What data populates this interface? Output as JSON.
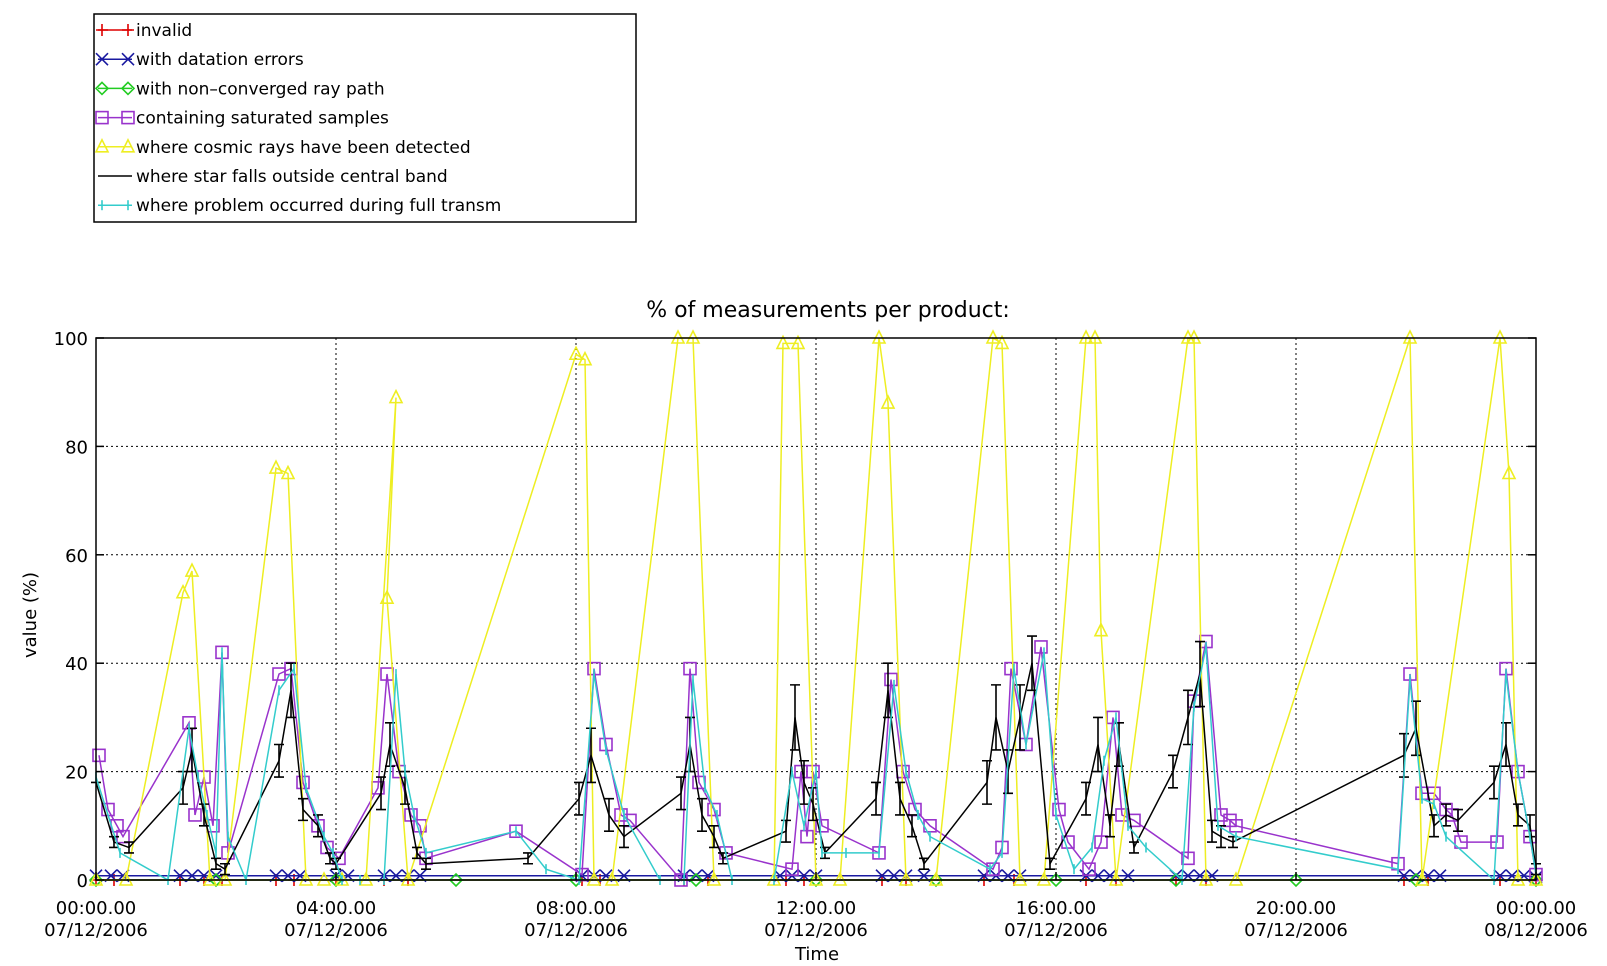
{
  "chart_data": {
    "type": "line",
    "title": "% of measurements per product:",
    "xlabel": "Time",
    "ylabel": "value (%)",
    "ylim": [
      0,
      100
    ],
    "xlim_hours": [
      0,
      24
    ],
    "grid": true,
    "legend_position": "top-left, above plot",
    "y_ticks": [
      "0",
      "20",
      "40",
      "60",
      "80",
      "100"
    ],
    "x_ticks": [
      {
        "hour": 0,
        "time": "00:00.00",
        "date": "07/12/2006"
      },
      {
        "hour": 4,
        "time": "04:00.00",
        "date": "07/12/2006"
      },
      {
        "hour": 8,
        "time": "08:00.00",
        "date": "07/12/2006"
      },
      {
        "hour": 12,
        "time": "12:00.00",
        "date": "07/12/2006"
      },
      {
        "hour": 16,
        "time": "16:00.00",
        "date": "07/12/2006"
      },
      {
        "hour": 20,
        "time": "20:00.00",
        "date": "07/12/2006"
      },
      {
        "hour": 24,
        "time": "00:00.00",
        "date": "08/12/2006"
      }
    ],
    "series": [
      {
        "name": "invalid",
        "color": "#dd0000",
        "marker": "plus",
        "x": [
          0,
          0.3,
          1.4,
          1.8,
          2.1,
          3.0,
          3.3,
          4.0,
          4.8,
          5.2,
          8.1,
          8.4,
          9.8,
          10.2,
          11.5,
          11.8,
          13.1,
          13.5,
          14.8,
          15.3,
          16.5,
          17.0,
          18.0,
          18.5,
          21.8,
          22.2,
          23.4,
          24
        ],
        "values": [
          0,
          0,
          0,
          0,
          0,
          0,
          0,
          0,
          0,
          0,
          0,
          0,
          0,
          0,
          0,
          0,
          0,
          0,
          0,
          0,
          0,
          0,
          0,
          0,
          0,
          0,
          0,
          0
        ]
      },
      {
        "name": "with datation errors",
        "color": "#1a1aa0",
        "marker": "x",
        "x": [
          0,
          0.25,
          0.45,
          1.4,
          1.6,
          1.8,
          2.0,
          3.0,
          3.2,
          3.4,
          4.0,
          4.2,
          4.8,
          5.0,
          5.2,
          5.4,
          8.1,
          8.3,
          8.5,
          8.8,
          9.8,
          10.0,
          10.2,
          11.4,
          11.6,
          11.8,
          12.0,
          13.1,
          13.3,
          13.5,
          13.8,
          14.8,
          15.0,
          15.2,
          15.4,
          16.5,
          16.7,
          16.9,
          17.2,
          18.0,
          18.2,
          18.4,
          18.6,
          21.8,
          22.0,
          22.2,
          22.4,
          23.4,
          23.6,
          23.8,
          24
        ],
        "values": [
          0.8,
          0.8,
          0.8,
          0.8,
          0.8,
          0.8,
          0.8,
          0.8,
          0.8,
          0.8,
          0.8,
          0.8,
          0.8,
          0.8,
          0.8,
          0.8,
          0.8,
          0.8,
          0.8,
          0.8,
          0.8,
          0.8,
          0.8,
          0.8,
          0.8,
          0.8,
          0.8,
          0.8,
          0.8,
          0.8,
          0.8,
          0.8,
          0.8,
          0.8,
          0.8,
          0.8,
          0.8,
          0.8,
          0.8,
          0.8,
          0.8,
          0.8,
          0.8,
          0.8,
          0.8,
          0.8,
          0.8,
          0.8,
          0.8,
          0.8,
          0.5
        ]
      },
      {
        "name": "with non–converged ray path",
        "color": "#22cc22",
        "marker": "diamond",
        "x": [
          0,
          2,
          4,
          6,
          8,
          10,
          12,
          14,
          16,
          18,
          20,
          22,
          24
        ],
        "values": [
          0,
          0,
          0,
          0,
          0,
          0,
          0,
          0,
          0,
          0,
          0,
          0,
          0
        ]
      },
      {
        "name": "containing saturated samples",
        "color": "#9933cc",
        "marker": "square",
        "x": [
          0.05,
          0.2,
          0.35,
          0.45,
          1.55,
          1.65,
          1.8,
          1.95,
          2.1,
          2.2,
          3.05,
          3.25,
          3.45,
          3.7,
          3.85,
          4.05,
          4.7,
          4.85,
          5.05,
          5.25,
          5.4,
          5.5,
          7.0,
          8.1,
          8.3,
          8.5,
          8.75,
          8.9,
          9.75,
          9.9,
          10.05,
          10.3,
          10.5,
          11.6,
          11.75,
          11.85,
          11.95,
          12.1,
          13.05,
          13.25,
          13.45,
          13.65,
          13.9,
          14.95,
          15.1,
          15.25,
          15.5,
          15.75,
          16.05,
          16.2,
          16.55,
          16.75,
          16.95,
          17.1,
          17.3,
          18.2,
          18.3,
          18.5,
          18.75,
          18.9,
          19.0,
          21.7,
          21.9,
          22.1,
          22.3,
          22.5,
          22.6,
          22.75,
          23.35,
          23.5,
          23.7,
          23.9,
          24.0
        ],
        "values": [
          23,
          13,
          10,
          8,
          29,
          12,
          19,
          10,
          42,
          5,
          38,
          39,
          18,
          10,
          6,
          4,
          17,
          38,
          20,
          12,
          10,
          4,
          9,
          1,
          39,
          25,
          12,
          11,
          0,
          39,
          18,
          13,
          5,
          2,
          20,
          8,
          20,
          10,
          5,
          37,
          20,
          13,
          10,
          2,
          6,
          39,
          25,
          43,
          13,
          7,
          2,
          7,
          30,
          12,
          11,
          4,
          33,
          44,
          12,
          11,
          10,
          3,
          38,
          16,
          16,
          13,
          12,
          7,
          7,
          39,
          20,
          8,
          1
        ]
      },
      {
        "name": "where cosmic rays have been detected",
        "color": "#eeee22",
        "marker": "triangle",
        "x": [
          0,
          0.5,
          1.45,
          1.6,
          1.9,
          2.15,
          3.0,
          3.2,
          3.5,
          3.8,
          4.1,
          4.5,
          5.0,
          4.85,
          5.2,
          8.0,
          8.15,
          8.3,
          8.6,
          9.7,
          9.95,
          10.3,
          11.3,
          11.45,
          11.7,
          12.0,
          12.4,
          13.05,
          13.2,
          13.5,
          14.0,
          14.95,
          15.1,
          15.4,
          15.8,
          16.5,
          16.65,
          16.75,
          17.0,
          18.2,
          18.3,
          18.5,
          19.0,
          21.9,
          22.1,
          23.4,
          23.55,
          23.7,
          24.0
        ],
        "values": [
          0,
          0,
          53,
          57,
          0,
          0,
          76,
          75,
          0,
          0,
          0,
          0,
          89,
          52,
          0,
          97,
          96,
          0,
          0,
          100,
          100,
          0,
          0,
          99,
          99,
          0,
          0,
          100,
          88,
          0,
          0,
          100,
          99,
          0,
          0,
          100,
          100,
          46,
          0,
          100,
          100,
          0,
          0,
          100,
          0,
          100,
          75,
          0,
          0
        ]
      },
      {
        "name": "where star falls outside central band",
        "color": "#000000",
        "marker": "errorbar",
        "x": [
          0,
          0.3,
          0.55,
          1.45,
          1.6,
          1.8,
          2.0,
          2.15,
          3.05,
          3.25,
          3.45,
          3.7,
          3.9,
          4.0,
          4.75,
          4.9,
          5.15,
          5.35,
          5.5,
          7.2,
          8.05,
          8.25,
          8.55,
          8.8,
          9.75,
          9.9,
          10.1,
          10.3,
          10.45,
          11.5,
          11.65,
          11.8,
          11.95,
          12.15,
          13.0,
          13.2,
          13.4,
          13.6,
          13.8,
          14.85,
          15.0,
          15.2,
          15.4,
          15.6,
          15.9,
          16.5,
          16.7,
          16.9,
          17.05,
          17.3,
          17.95,
          18.2,
          18.4,
          18.6,
          18.75,
          18.95,
          21.8,
          22.0,
          22.3,
          22.5,
          22.7,
          23.3,
          23.5,
          23.7,
          23.9,
          24.0
        ],
        "values": [
          18,
          7,
          6,
          17,
          24,
          12,
          3,
          2,
          22,
          35,
          13,
          10,
          4,
          3,
          16,
          25,
          17,
          5,
          3,
          4,
          15,
          23,
          12,
          8,
          16,
          25,
          12,
          8,
          4,
          9,
          30,
          18,
          14,
          5,
          15,
          35,
          15,
          10,
          3,
          18,
          30,
          20,
          30,
          40,
          3,
          15,
          25,
          10,
          25,
          6,
          20,
          30,
          38,
          9,
          8,
          7,
          23,
          28,
          10,
          12,
          11,
          18,
          25,
          12,
          10,
          2
        ],
        "errors": [
          0,
          1,
          1,
          3,
          4,
          2,
          1,
          1,
          3,
          5,
          2,
          2,
          1,
          1,
          3,
          4,
          3,
          1,
          1,
          1,
          3,
          5,
          3,
          2,
          3,
          5,
          3,
          2,
          1,
          2,
          6,
          4,
          3,
          1,
          3,
          5,
          3,
          2,
          1,
          4,
          6,
          4,
          6,
          5,
          1,
          3,
          5,
          2,
          4,
          1,
          3,
          5,
          6,
          2,
          2,
          1,
          4,
          5,
          2,
          2,
          2,
          3,
          4,
          2,
          2,
          1
        ]
      },
      {
        "name": "where problem occurred during full transm",
        "color": "#33cccc",
        "marker": "bar",
        "x": [
          0,
          0.4,
          1.2,
          1.55,
          1.7,
          1.85,
          2.0,
          2.1,
          2.2,
          2.5,
          3.05,
          3.3,
          3.5,
          3.8,
          3.95,
          4.1,
          4.4,
          4.8,
          5.0,
          5.15,
          5.3,
          5.5,
          7.0,
          7.5,
          8.05,
          8.3,
          8.5,
          8.8,
          9.4,
          9.8,
          9.95,
          10.15,
          10.35,
          10.6,
          11.3,
          11.6,
          11.8,
          12.0,
          12.1,
          12.5,
          13.05,
          13.3,
          13.5,
          13.7,
          13.9,
          14.9,
          15.1,
          15.3,
          15.5,
          15.8,
          16.0,
          16.3,
          16.6,
          16.8,
          17.0,
          17.2,
          17.5,
          18.1,
          18.3,
          18.5,
          18.7,
          19.0,
          21.7,
          21.9,
          22.1,
          22.3,
          22.5,
          23.3,
          23.5,
          23.7,
          23.9,
          24.0
        ],
        "values": [
          19,
          5,
          0,
          28,
          19,
          12,
          5,
          42,
          8,
          0,
          35,
          39,
          17,
          8,
          5,
          0,
          0,
          0,
          38,
          20,
          12,
          5,
          9,
          2,
          0,
          38,
          24,
          12,
          0,
          0,
          37,
          17,
          12,
          0,
          0,
          20,
          10,
          20,
          5,
          5,
          5,
          36,
          20,
          12,
          8,
          2,
          5,
          39,
          25,
          42,
          12,
          2,
          6,
          22,
          30,
          10,
          6,
          0,
          32,
          43,
          10,
          8,
          2,
          37,
          15,
          14,
          8,
          0,
          38,
          20,
          8,
          1
        ]
      }
    ]
  }
}
